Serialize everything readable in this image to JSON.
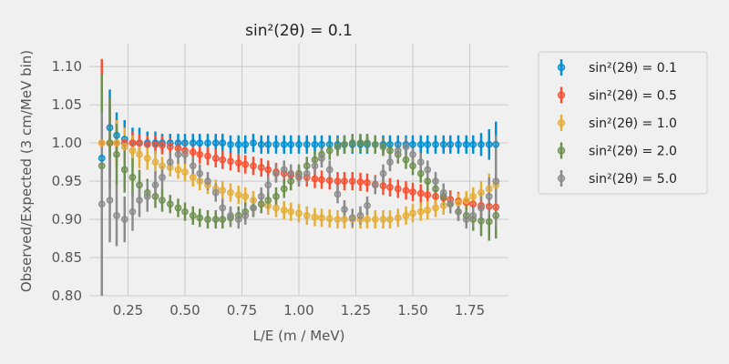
{
  "chart_data": {
    "type": "scatter",
    "title": "sin²(2θ) = 0.1",
    "xlabel": "L/E (m / MeV)",
    "ylabel": "Observed/Expected (3 cm/MeV bin)",
    "xlim": [
      0.08,
      1.92
    ],
    "ylim": [
      0.8,
      1.13
    ],
    "xticks": [
      "0.25",
      "0.50",
      "0.75",
      "1.00",
      "1.25",
      "1.50",
      "1.75"
    ],
    "xtick_values": [
      0.25,
      0.5,
      0.75,
      1.0,
      1.25,
      1.5,
      1.75
    ],
    "yticks": [
      "0.80",
      "0.85",
      "0.90",
      "0.95",
      "1.00",
      "1.05",
      "1.10"
    ],
    "ytick_values": [
      0.8,
      0.85,
      0.9,
      0.95,
      1.0,
      1.05,
      1.1
    ],
    "grid": true,
    "legend_position": "right-outside",
    "x": [
      0.135,
      0.17,
      0.2,
      0.235,
      0.27,
      0.3,
      0.335,
      0.37,
      0.4,
      0.435,
      0.47,
      0.5,
      0.535,
      0.565,
      0.6,
      0.635,
      0.665,
      0.7,
      0.735,
      0.765,
      0.8,
      0.835,
      0.865,
      0.9,
      0.935,
      0.965,
      1.0,
      1.035,
      1.07,
      1.1,
      1.135,
      1.17,
      1.2,
      1.235,
      1.27,
      1.3,
      1.335,
      1.37,
      1.4,
      1.435,
      1.47,
      1.5,
      1.535,
      1.565,
      1.6,
      1.635,
      1.665,
      1.7,
      1.735,
      1.765,
      1.8,
      1.835,
      1.865
    ],
    "series": [
      {
        "name": "sin²(2θ) = 0.1",
        "color": "#008fd5",
        "values": [
          0.98,
          1.02,
          1.01,
          1.005,
          1.0,
          1.0,
          1.0,
          1.0,
          1.0,
          1.0,
          1.0,
          1.0,
          1.0,
          1.0,
          1.0,
          1.0,
          1.0,
          0.998,
          0.998,
          0.998,
          1.0,
          0.998,
          0.998,
          0.998,
          0.998,
          0.998,
          0.998,
          0.998,
          0.998,
          0.998,
          0.998,
          0.998,
          0.998,
          0.998,
          0.998,
          0.998,
          0.998,
          0.998,
          0.998,
          0.998,
          0.998,
          0.998,
          0.998,
          0.998,
          0.998,
          0.998,
          0.998,
          0.998,
          0.998,
          0.998,
          0.998,
          0.998,
          0.998
        ],
        "errors": [
          0.04,
          0.05,
          0.03,
          0.025,
          0.02,
          0.02,
          0.015,
          0.015,
          0.012,
          0.012,
          0.012,
          0.012,
          0.012,
          0.012,
          0.012,
          0.012,
          0.012,
          0.012,
          0.012,
          0.012,
          0.012,
          0.012,
          0.012,
          0.012,
          0.012,
          0.012,
          0.012,
          0.012,
          0.012,
          0.012,
          0.012,
          0.012,
          0.012,
          0.012,
          0.012,
          0.012,
          0.012,
          0.012,
          0.012,
          0.012,
          0.012,
          0.012,
          0.012,
          0.012,
          0.012,
          0.012,
          0.012,
          0.012,
          0.012,
          0.012,
          0.015,
          0.02,
          0.03
        ]
      },
      {
        "name": "sin²(2θ) = 0.5",
        "color": "#fc4f30",
        "values": [
          1.0,
          1.0,
          1.0,
          1.0,
          1.0,
          1.0,
          0.998,
          0.998,
          0.997,
          0.995,
          0.993,
          0.99,
          0.988,
          0.985,
          0.983,
          0.98,
          0.978,
          0.976,
          0.974,
          0.972,
          0.97,
          0.968,
          0.965,
          0.962,
          0.96,
          0.958,
          0.956,
          0.955,
          0.953,
          0.952,
          0.951,
          0.95,
          0.95,
          0.95,
          0.949,
          0.948,
          0.946,
          0.944,
          0.942,
          0.94,
          0.938,
          0.936,
          0.934,
          0.932,
          0.93,
          0.928,
          0.926,
          0.924,
          0.922,
          0.92,
          0.918,
          0.917,
          0.916
        ],
        "errors": [
          0.11,
          0.045,
          0.03,
          0.02,
          0.015,
          0.012,
          0.012,
          0.012,
          0.012,
          0.012,
          0.012,
          0.012,
          0.012,
          0.012,
          0.012,
          0.012,
          0.012,
          0.012,
          0.012,
          0.012,
          0.012,
          0.012,
          0.012,
          0.012,
          0.012,
          0.012,
          0.012,
          0.012,
          0.012,
          0.012,
          0.012,
          0.012,
          0.012,
          0.012,
          0.012,
          0.012,
          0.012,
          0.012,
          0.012,
          0.012,
          0.012,
          0.012,
          0.012,
          0.012,
          0.012,
          0.012,
          0.012,
          0.012,
          0.012,
          0.012,
          0.012,
          0.015,
          0.02
        ]
      },
      {
        "name": "sin²(2θ) = 1.0",
        "color": "#e5ae38",
        "values": [
          1.0,
          1.0,
          1.0,
          0.995,
          0.99,
          0.985,
          0.98,
          0.975,
          0.97,
          0.968,
          0.965,
          0.962,
          0.955,
          0.95,
          0.945,
          0.94,
          0.938,
          0.935,
          0.932,
          0.93,
          0.925,
          0.92,
          0.918,
          0.915,
          0.912,
          0.91,
          0.908,
          0.905,
          0.903,
          0.902,
          0.901,
          0.9,
          0.9,
          0.9,
          0.9,
          0.9,
          0.9,
          0.9,
          0.9,
          0.902,
          0.905,
          0.908,
          0.91,
          0.912,
          0.915,
          0.918,
          0.92,
          0.922,
          0.925,
          0.93,
          0.935,
          0.94,
          0.945
        ],
        "errors": [
          0.09,
          0.04,
          0.03,
          0.025,
          0.02,
          0.018,
          0.015,
          0.015,
          0.012,
          0.012,
          0.012,
          0.012,
          0.012,
          0.012,
          0.012,
          0.012,
          0.012,
          0.012,
          0.012,
          0.012,
          0.012,
          0.012,
          0.012,
          0.012,
          0.012,
          0.012,
          0.012,
          0.012,
          0.012,
          0.012,
          0.012,
          0.012,
          0.012,
          0.012,
          0.012,
          0.012,
          0.012,
          0.012,
          0.012,
          0.012,
          0.012,
          0.012,
          0.012,
          0.012,
          0.012,
          0.012,
          0.012,
          0.012,
          0.012,
          0.012,
          0.015,
          0.02,
          0.03
        ]
      },
      {
        "name": "sin²(2θ) = 2.0",
        "color": "#6d904f",
        "values": [
          0.97,
          1.0,
          0.985,
          0.965,
          0.955,
          0.945,
          0.935,
          0.93,
          0.925,
          0.92,
          0.915,
          0.91,
          0.905,
          0.902,
          0.9,
          0.9,
          0.9,
          0.902,
          0.905,
          0.91,
          0.915,
          0.92,
          0.925,
          0.93,
          0.94,
          0.95,
          0.96,
          0.97,
          0.978,
          0.985,
          0.99,
          0.995,
          0.998,
          1.0,
          1.0,
          1.0,
          0.998,
          0.995,
          0.99,
          0.985,
          0.978,
          0.97,
          0.96,
          0.95,
          0.94,
          0.93,
          0.92,
          0.91,
          0.905,
          0.9,
          0.898,
          0.897,
          0.905
        ],
        "errors": [
          0.12,
          0.06,
          0.04,
          0.03,
          0.025,
          0.02,
          0.018,
          0.015,
          0.015,
          0.012,
          0.012,
          0.012,
          0.012,
          0.012,
          0.012,
          0.012,
          0.012,
          0.012,
          0.012,
          0.012,
          0.012,
          0.012,
          0.012,
          0.012,
          0.012,
          0.012,
          0.012,
          0.012,
          0.012,
          0.012,
          0.012,
          0.012,
          0.012,
          0.012,
          0.012,
          0.012,
          0.012,
          0.012,
          0.012,
          0.012,
          0.012,
          0.012,
          0.012,
          0.012,
          0.012,
          0.012,
          0.012,
          0.012,
          0.012,
          0.015,
          0.02,
          0.025,
          0.03
        ]
      },
      {
        "name": "sin²(2θ) = 5.0",
        "color": "#8b8b8b",
        "values": [
          0.92,
          0.925,
          0.905,
          0.9,
          0.91,
          0.925,
          0.93,
          0.945,
          0.955,
          0.975,
          0.985,
          0.985,
          0.97,
          0.96,
          0.95,
          0.935,
          0.915,
          0.905,
          0.9,
          0.905,
          0.915,
          0.93,
          0.945,
          0.96,
          0.965,
          0.96,
          0.955,
          0.96,
          0.97,
          0.98,
          0.965,
          0.933,
          0.913,
          0.902,
          0.905,
          0.918,
          0.945,
          0.96,
          0.975,
          0.99,
          0.995,
          0.985,
          0.975,
          0.965,
          0.95,
          0.935,
          0.92,
          0.91,
          0.9,
          0.905,
          0.915,
          0.93,
          0.95
        ],
        "errors": [
          0.12,
          0.055,
          0.04,
          0.03,
          0.025,
          0.022,
          0.02,
          0.018,
          0.015,
          0.012,
          0.012,
          0.012,
          0.012,
          0.012,
          0.012,
          0.012,
          0.012,
          0.012,
          0.012,
          0.012,
          0.012,
          0.012,
          0.012,
          0.012,
          0.012,
          0.012,
          0.012,
          0.012,
          0.012,
          0.012,
          0.012,
          0.012,
          0.012,
          0.012,
          0.012,
          0.012,
          0.012,
          0.012,
          0.012,
          0.012,
          0.012,
          0.012,
          0.012,
          0.012,
          0.012,
          0.012,
          0.012,
          0.012,
          0.012,
          0.015,
          0.02,
          0.025,
          0.06
        ]
      }
    ]
  }
}
